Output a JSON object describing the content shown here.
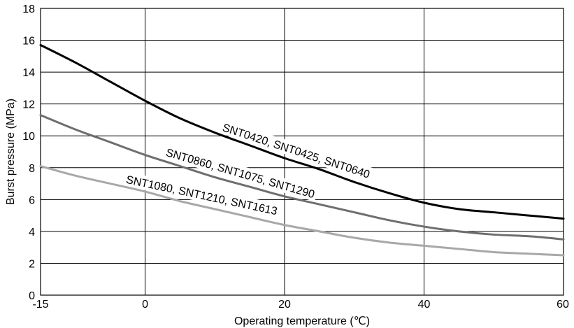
{
  "chart_data": {
    "type": "line",
    "xlabel": "Operating temperature (℃)",
    "ylabel": "Burst pressure (MPa)",
    "xlim": [
      -15,
      60
    ],
    "ylim": [
      0,
      18
    ],
    "x_ticks": [
      -15,
      0,
      20,
      40,
      60
    ],
    "y_ticks": [
      0,
      2,
      4,
      6,
      8,
      10,
      12,
      14,
      16,
      18
    ],
    "grid": true,
    "legend": "inline labels",
    "series": [
      {
        "name": "SNT0420, SNT0425, SNT0640",
        "color": "#000000",
        "x": [
          -15,
          -10,
          -5,
          0,
          5,
          10,
          15,
          20,
          25,
          30,
          35,
          40,
          45,
          50,
          55,
          60
        ],
        "y": [
          15.7,
          14.6,
          13.4,
          12.2,
          11.1,
          10.2,
          9.4,
          8.6,
          7.9,
          7.1,
          6.4,
          5.8,
          5.4,
          5.2,
          5.0,
          4.8
        ]
      },
      {
        "name": "SNT0860, SNT1075, SNT1290",
        "color": "#6e6e6e",
        "x": [
          -15,
          -10,
          -5,
          0,
          5,
          10,
          15,
          20,
          25,
          30,
          35,
          40,
          45,
          50,
          55,
          60
        ],
        "y": [
          11.3,
          10.4,
          9.6,
          8.8,
          8.1,
          7.4,
          6.8,
          6.2,
          5.7,
          5.2,
          4.7,
          4.3,
          4.0,
          3.8,
          3.7,
          3.5
        ]
      },
      {
        "name": "SNT1080, SNT1210, SNT1613",
        "color": "#a8a8a8",
        "x": [
          -15,
          -10,
          -5,
          0,
          5,
          10,
          15,
          20,
          25,
          30,
          35,
          40,
          45,
          50,
          55,
          60
        ],
        "y": [
          8.1,
          7.5,
          7.0,
          6.5,
          5.9,
          5.4,
          4.9,
          4.4,
          4.0,
          3.6,
          3.3,
          3.1,
          2.9,
          2.7,
          2.6,
          2.5
        ]
      }
    ],
    "annotations": [
      {
        "text": "SNT0420, SNT0425, SNT0640",
        "series": 0,
        "anchor_x": 21.5,
        "angle": 18
      },
      {
        "text": "SNT0860, SNT1075, SNT1290",
        "series": 1,
        "anchor_x": 13.5,
        "angle": 16
      },
      {
        "text": "SNT1080, SNT1210, SNT1613",
        "series": 2,
        "anchor_x": 8.0,
        "angle": 12
      }
    ]
  }
}
